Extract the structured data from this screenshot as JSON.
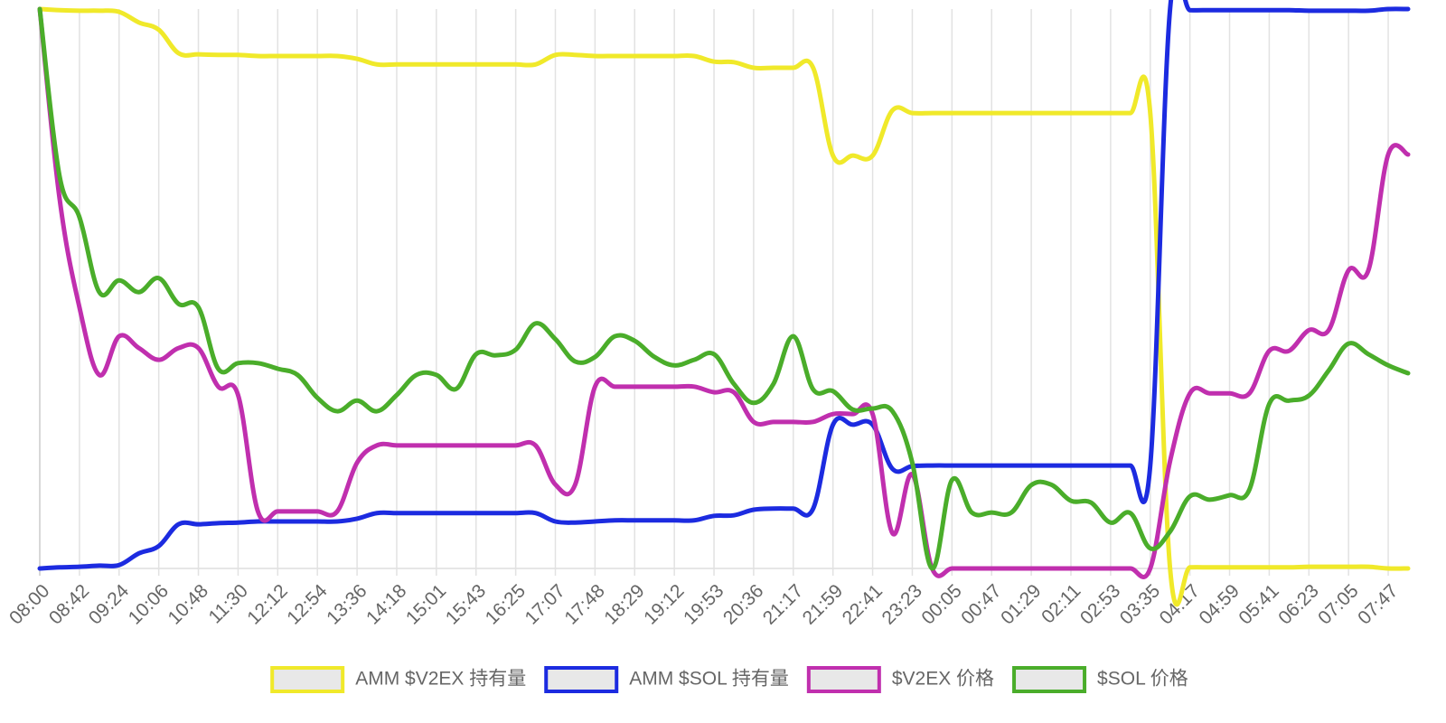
{
  "chart_data": {
    "type": "line",
    "categories": [
      "08:00",
      null,
      "08:42",
      null,
      "09:24",
      null,
      "10:06",
      null,
      "10:48",
      null,
      "11:30",
      null,
      "12:12",
      null,
      "12:54",
      null,
      "13:36",
      null,
      "14:18",
      null,
      "15:01",
      null,
      "15:43",
      null,
      "16:25",
      null,
      "17:07",
      null,
      "17:48",
      null,
      "18:29",
      null,
      "19:12",
      null,
      "19:53",
      null,
      "20:36",
      null,
      "21:17",
      null,
      "21:59",
      null,
      "22:41",
      null,
      "23:23",
      null,
      "00:05",
      null,
      "00:47",
      null,
      "01:29",
      null,
      "02:11",
      null,
      "02:53",
      null,
      "03:35",
      null,
      "04:17",
      null,
      "04:59",
      null,
      "05:41",
      null,
      "06:23",
      null,
      "07:05",
      null,
      "07:47",
      null
    ],
    "series": [
      {
        "name": "AMM $V2EX 持有量",
        "color": "#f0e92a",
        "values": [
          100,
          99.8,
          99.7,
          99.7,
          99.5,
          97.6,
          96.3,
          92.1,
          91.9,
          91.8,
          91.8,
          91.6,
          91.6,
          91.6,
          91.6,
          91.6,
          91.1,
          90.1,
          90.1,
          90.1,
          90.1,
          90.1,
          90.1,
          90.1,
          90.1,
          90.1,
          91.8,
          91.8,
          91.6,
          91.6,
          91.6,
          91.6,
          91.6,
          91.6,
          90.6,
          90.5,
          89.5,
          89.5,
          89.5,
          89.5,
          73.8,
          73.8,
          73.8,
          81.9,
          81.4,
          81.4,
          81.4,
          81.4,
          81.4,
          81.4,
          81.4,
          81.4,
          81.4,
          81.4,
          81.4,
          81.4,
          81.4,
          0,
          0.2,
          0.2,
          0.2,
          0.2,
          0.2,
          0.2,
          0.3,
          0.3,
          0.3,
          0.3,
          0,
          0
        ]
      },
      {
        "name": "AMM $SOL 持有量",
        "color": "#1c2be0",
        "values": [
          0,
          0.2,
          0.3,
          0.5,
          0.6,
          2.7,
          4.0,
          7.9,
          7.9,
          8.1,
          8.2,
          8.4,
          8.4,
          8.4,
          8.4,
          8.4,
          8.9,
          9.9,
          9.9,
          9.9,
          9.9,
          9.9,
          9.9,
          9.9,
          9.9,
          9.9,
          8.4,
          8.2,
          8.4,
          8.6,
          8.6,
          8.6,
          8.6,
          8.6,
          9.4,
          9.5,
          10.5,
          10.7,
          10.7,
          10.7,
          25.7,
          25.7,
          25.7,
          17.8,
          18.3,
          18.4,
          18.4,
          18.4,
          18.4,
          18.4,
          18.4,
          18.4,
          18.4,
          18.4,
          18.4,
          18.4,
          18.4,
          100,
          99.8,
          99.8,
          99.8,
          99.8,
          99.8,
          99.8,
          99.7,
          99.7,
          99.7,
          99.7,
          100,
          100
        ]
      },
      {
        "name": "$V2EX 价格",
        "color": "#c02fae",
        "values": [
          100,
          66.1,
          46.7,
          34.6,
          41.5,
          39.4,
          37.3,
          39.4,
          39.4,
          32.5,
          31.0,
          10.2,
          10.2,
          10.2,
          10.2,
          10.2,
          18.9,
          22.0,
          22.0,
          22.0,
          22.0,
          22.0,
          22.0,
          22.0,
          22.0,
          22.0,
          15.0,
          15.0,
          32.5,
          32.5,
          32.5,
          32.5,
          32.5,
          32.5,
          31.5,
          31.5,
          26.2,
          26.2,
          26.2,
          26.2,
          27.6,
          27.6,
          27.6,
          6.3,
          16.8,
          0,
          0,
          0,
          0,
          0,
          0,
          0,
          0,
          0,
          0,
          0,
          0,
          19.2,
          31.3,
          31.3,
          31.3,
          31.3,
          38.9,
          38.9,
          42.6,
          42.6,
          53.3,
          53.3,
          74.0,
          74.0
        ]
      },
      {
        "name": "$SOL 价格",
        "color": "#4aad2a",
        "values": [
          100,
          70.1,
          62.8,
          49.4,
          51.5,
          49.4,
          51.9,
          47.3,
          46.7,
          35.7,
          36.7,
          36.7,
          35.7,
          34.6,
          30.5,
          28.1,
          30.0,
          28.1,
          31.0,
          34.6,
          34.6,
          32.1,
          38.3,
          38.1,
          39.1,
          43.8,
          41.0,
          37.0,
          37.8,
          41.5,
          40.7,
          37.8,
          36.3,
          37.3,
          38.3,
          33.0,
          29.6,
          33.0,
          41.5,
          32.0,
          31.7,
          28.4,
          28.6,
          28.1,
          18.9,
          0,
          15.8,
          10.0,
          10.0,
          10.0,
          14.9,
          15.0,
          12.1,
          11.8,
          8.2,
          9.9,
          3.6,
          6.6,
          12.9,
          12.3,
          13.1,
          14.1,
          29.4,
          30.0,
          30.9,
          35.4,
          40.2,
          38.3,
          36.3,
          34.9
        ]
      }
    ],
    "ylim": [
      0,
      100
    ],
    "grid": true,
    "legend": "bottom"
  }
}
